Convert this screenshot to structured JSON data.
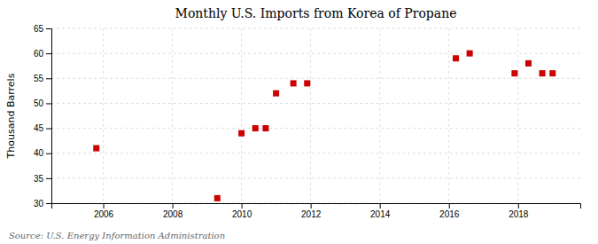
{
  "chart_data": {
    "type": "scatter",
    "title": "Monthly U.S. Imports from Korea of Propane",
    "ylabel": "Thousand Barrels",
    "annotations": [
      "Source: U.S. Energy Information Administration"
    ],
    "x": [
      2005.8,
      2009.3,
      2010.0,
      2010.4,
      2010.7,
      2011.0,
      2011.5,
      2011.9,
      2016.2,
      2016.6,
      2017.9,
      2018.3,
      2018.7,
      2019.0
    ],
    "values": [
      41,
      31,
      44,
      45,
      45,
      52,
      54,
      54,
      59,
      60,
      56,
      58,
      56,
      56
    ],
    "color": "#CC0000",
    "marker": "square",
    "xlim": [
      2004.5,
      2019.8
    ],
    "xticks": [
      2006,
      2008,
      2010,
      2012,
      2014,
      2016,
      2018
    ],
    "ylim": [
      30,
      65
    ],
    "yticks": [
      30,
      35,
      40,
      45,
      50,
      55,
      60,
      65
    ],
    "grid": true
  }
}
